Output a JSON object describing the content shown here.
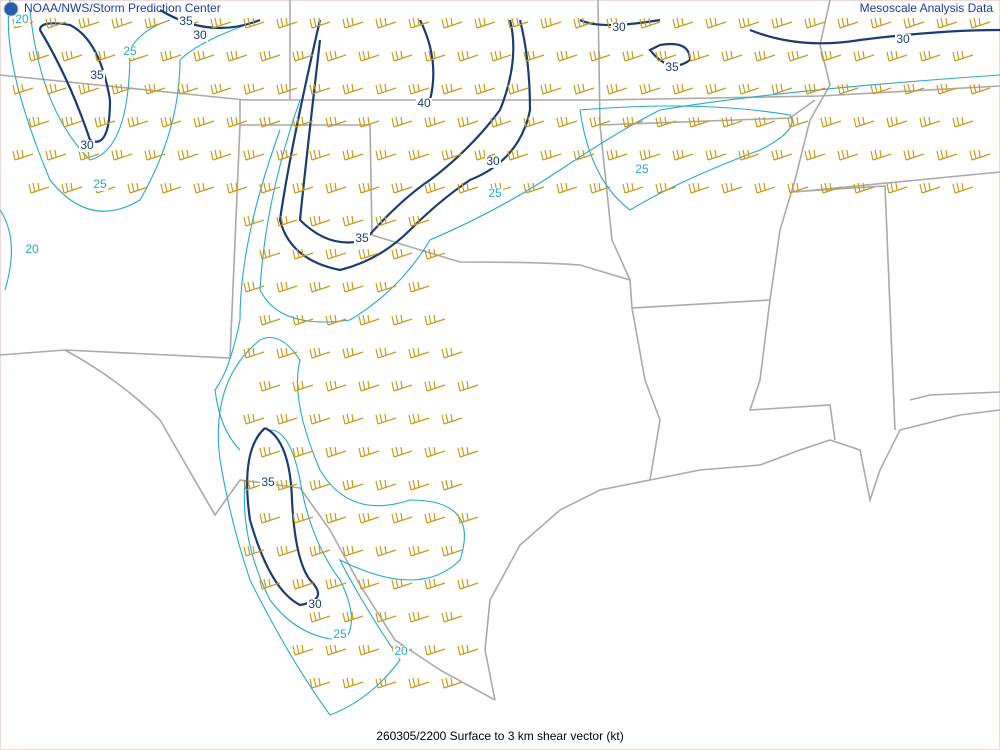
{
  "header": {
    "left": "NOAA/NWS/Storm Prediction Center",
    "right": "Mesoscale Analysis Data"
  },
  "footer": "260305/2200 Surface to 3 km shear vector (kt)",
  "contour_labels": [
    20,
    35,
    30,
    25,
    35,
    30,
    25,
    20,
    40,
    30,
    25,
    35,
    30,
    35,
    30,
    25,
    35,
    30,
    25,
    20
  ]
}
